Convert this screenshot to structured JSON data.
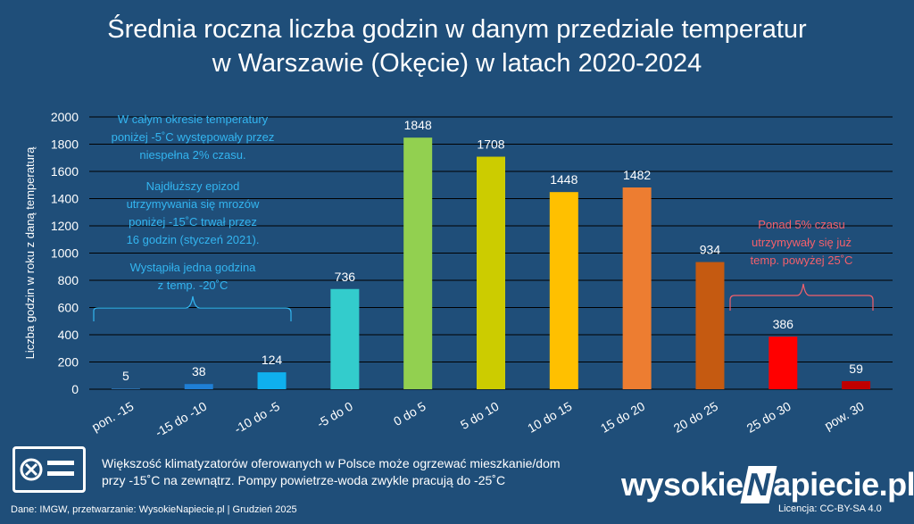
{
  "chart_data": {
    "type": "bar",
    "title_line1": "Średnia roczna liczba godzin w danym przedziale temperatur",
    "title_line2": "w Warszawie (Okęcie) w latach 2020-2024",
    "ylabel": "Liczba godzin w roku z daną temperaturą",
    "ylim": [
      0,
      2000
    ],
    "yticks": [
      0,
      200,
      400,
      600,
      800,
      1000,
      1200,
      1400,
      1600,
      1800,
      2000
    ],
    "categories": [
      "pon. -15",
      "-15 do -10",
      "-10 do -5",
      "-5 do 0",
      "0 do 5",
      "5 do 10",
      "10 do 15",
      "15 do 20",
      "20 do 25",
      "25 do 30",
      "pow. 30"
    ],
    "values": [
      5,
      38,
      124,
      736,
      1848,
      1708,
      1448,
      1482,
      934,
      386,
      59
    ],
    "colors": [
      "#2e75b6",
      "#1f7fd6",
      "#0fb0ee",
      "#33cccc",
      "#92d050",
      "#cccc00",
      "#ffc000",
      "#ed7d31",
      "#c55a11",
      "#ff0000",
      "#c00000"
    ],
    "grid": true,
    "annotations": {
      "left_1": [
        "W całym okresie temperatury",
        "poniżej -5˚C występowały przez",
        "niespełna 2% czasu."
      ],
      "left_2": [
        "Najdłuższy epizod",
        "utrzymywania się mrozów",
        "poniżej -15˚C trwał przez",
        "16 godzin (styczeń 2021)."
      ],
      "left_3": [
        "Wystąpiła jedna godzina",
        "z temp. -20˚C"
      ],
      "right": [
        "Ponad 5% czasu",
        "utrzymywały się już",
        "temp. powyżej 25˚C"
      ],
      "left_color": "#33b5f0",
      "right_color": "#f4606c"
    }
  },
  "footer": {
    "line1": "Większość klimatyzatorów oferowanych w Polsce może ogrzewać mieszkanie/dom",
    "line2": "przy -15˚C na zewnątrz. Pompy powietrze-woda zwykle pracują do -25˚C",
    "source": "Dane: IMGW, przetwarzanie: WysokieNapiecie.pl   |  Grudzień 2025",
    "logo_left": "wysokie",
    "logo_mark": "N",
    "logo_right": "apiecie.pl",
    "license": "Licencja: CC-BY-SA 4.0"
  },
  "icons": {
    "footer_icon": "air-conditioner-icon"
  },
  "colors": {
    "background": "#1f4e79",
    "grid": "#000000",
    "text": "#ffffff"
  }
}
